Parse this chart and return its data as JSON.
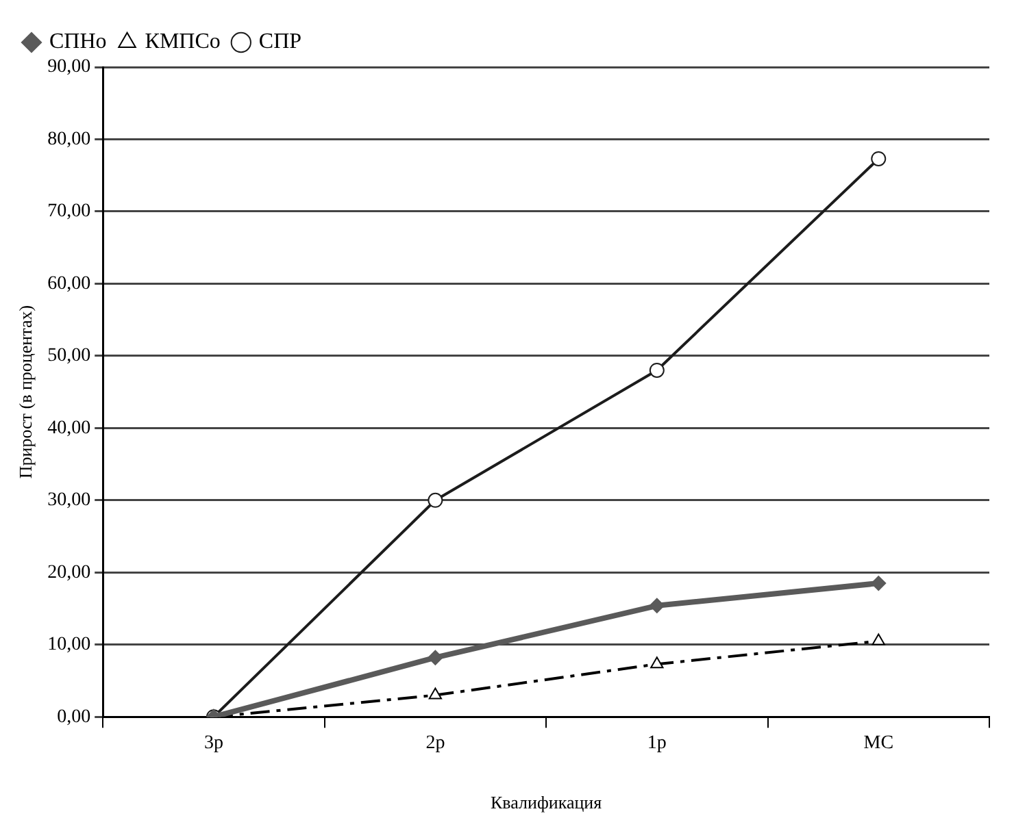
{
  "chart_data": {
    "type": "line",
    "xlabel": "Квалификация",
    "ylabel": "Прирост (в процентах)",
    "categories": [
      "3р",
      "2р",
      "1р",
      "МС"
    ],
    "series": [
      {
        "name": "СПНо",
        "color": "#5a5a5a",
        "values": [
          0,
          8.2,
          15.4,
          18.5
        ],
        "marker": "diamond",
        "line_style": "solid"
      },
      {
        "name": "КМПСо",
        "color": "#000000",
        "values": [
          0,
          3.0,
          7.3,
          10.5
        ],
        "marker": "triangle",
        "line_style": "dashed"
      },
      {
        "name": "СПР",
        "color": "#1c1c1c",
        "values": [
          0,
          30,
          48,
          77.3
        ],
        "marker": "circle",
        "line_style": "solid"
      }
    ],
    "ylim": [
      0,
      90
    ],
    "yticks": [
      {
        "value": 0,
        "label": "0,00"
      },
      {
        "value": 10,
        "label": "10,00"
      },
      {
        "value": 20,
        "label": "20,00"
      },
      {
        "value": 30,
        "label": "30,00"
      },
      {
        "value": 40,
        "label": "40,00"
      },
      {
        "value": 50,
        "label": "50,00"
      },
      {
        "value": 60,
        "label": "60,00"
      },
      {
        "value": 70,
        "label": "70,00"
      },
      {
        "value": 80,
        "label": "80,00"
      },
      {
        "value": 90,
        "label": "90,00"
      }
    ],
    "grid": "y",
    "legend": "top left"
  }
}
